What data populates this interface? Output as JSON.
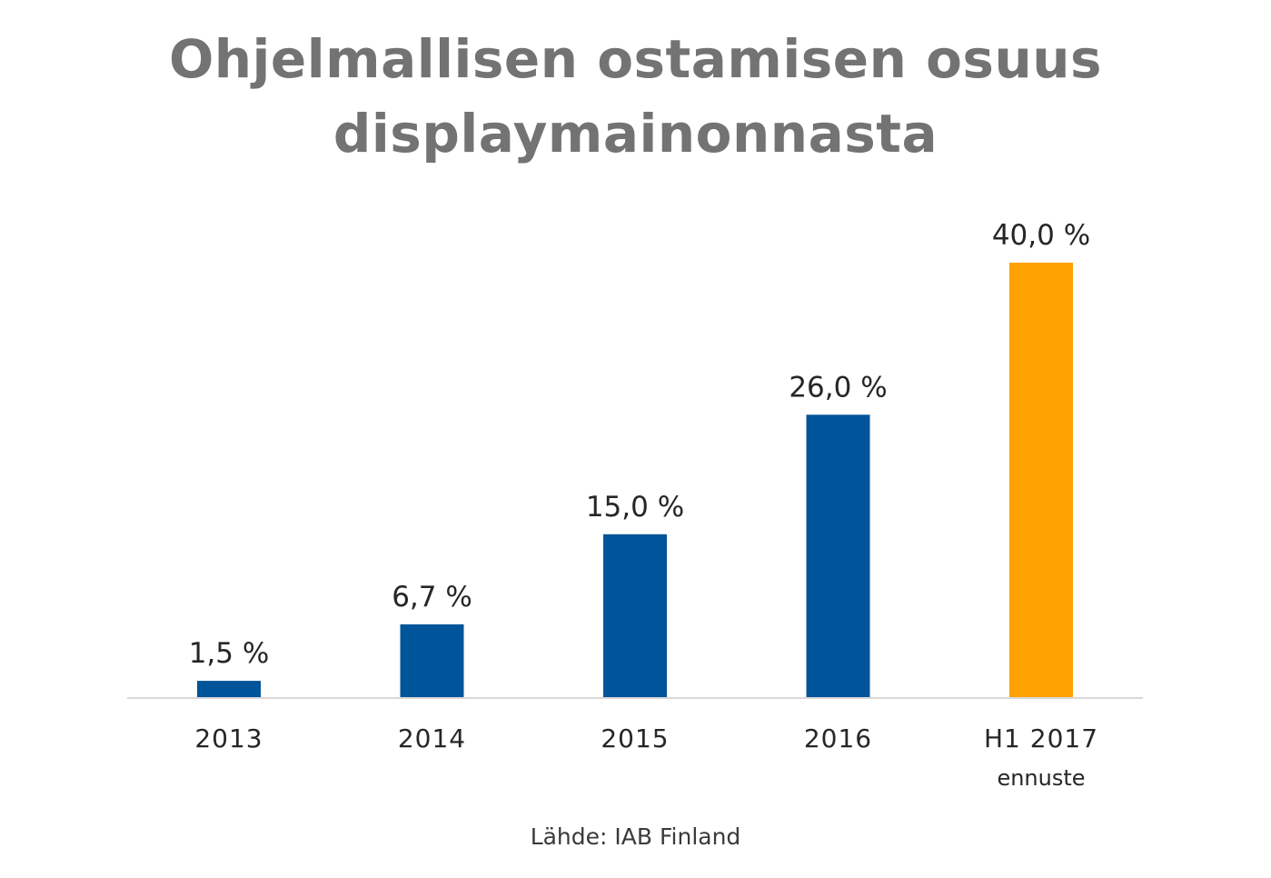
{
  "title_lines": [
    "Ohjelmallisen ostamisen osuus",
    "displaymainonnasta"
  ],
  "source": "Lähde: IAB Finland",
  "colors": {
    "bar": "#00549a",
    "forecast_bar": "#ffa100",
    "axis": "#d9d9d9",
    "title": "#737373"
  },
  "chart_data": {
    "type": "bar",
    "title": "Ohjelmallisen ostamisen osuus displaymainonnasta",
    "categories": [
      "2013",
      "2014",
      "2015",
      "2016",
      "H1 2017"
    ],
    "category_sublabels": [
      "",
      "",
      "",
      "",
      "ennuste"
    ],
    "values": [
      1.5,
      6.7,
      15.0,
      26.0,
      40.0
    ],
    "value_labels": [
      "1,5 %",
      "6,7 %",
      "15,0 %",
      "26,0 %",
      "40,0 %"
    ],
    "highlight": [
      false,
      false,
      false,
      false,
      true
    ],
    "xlabel": "",
    "ylabel": "",
    "ylim": [
      0,
      40
    ],
    "grid": false,
    "legend": "none"
  }
}
